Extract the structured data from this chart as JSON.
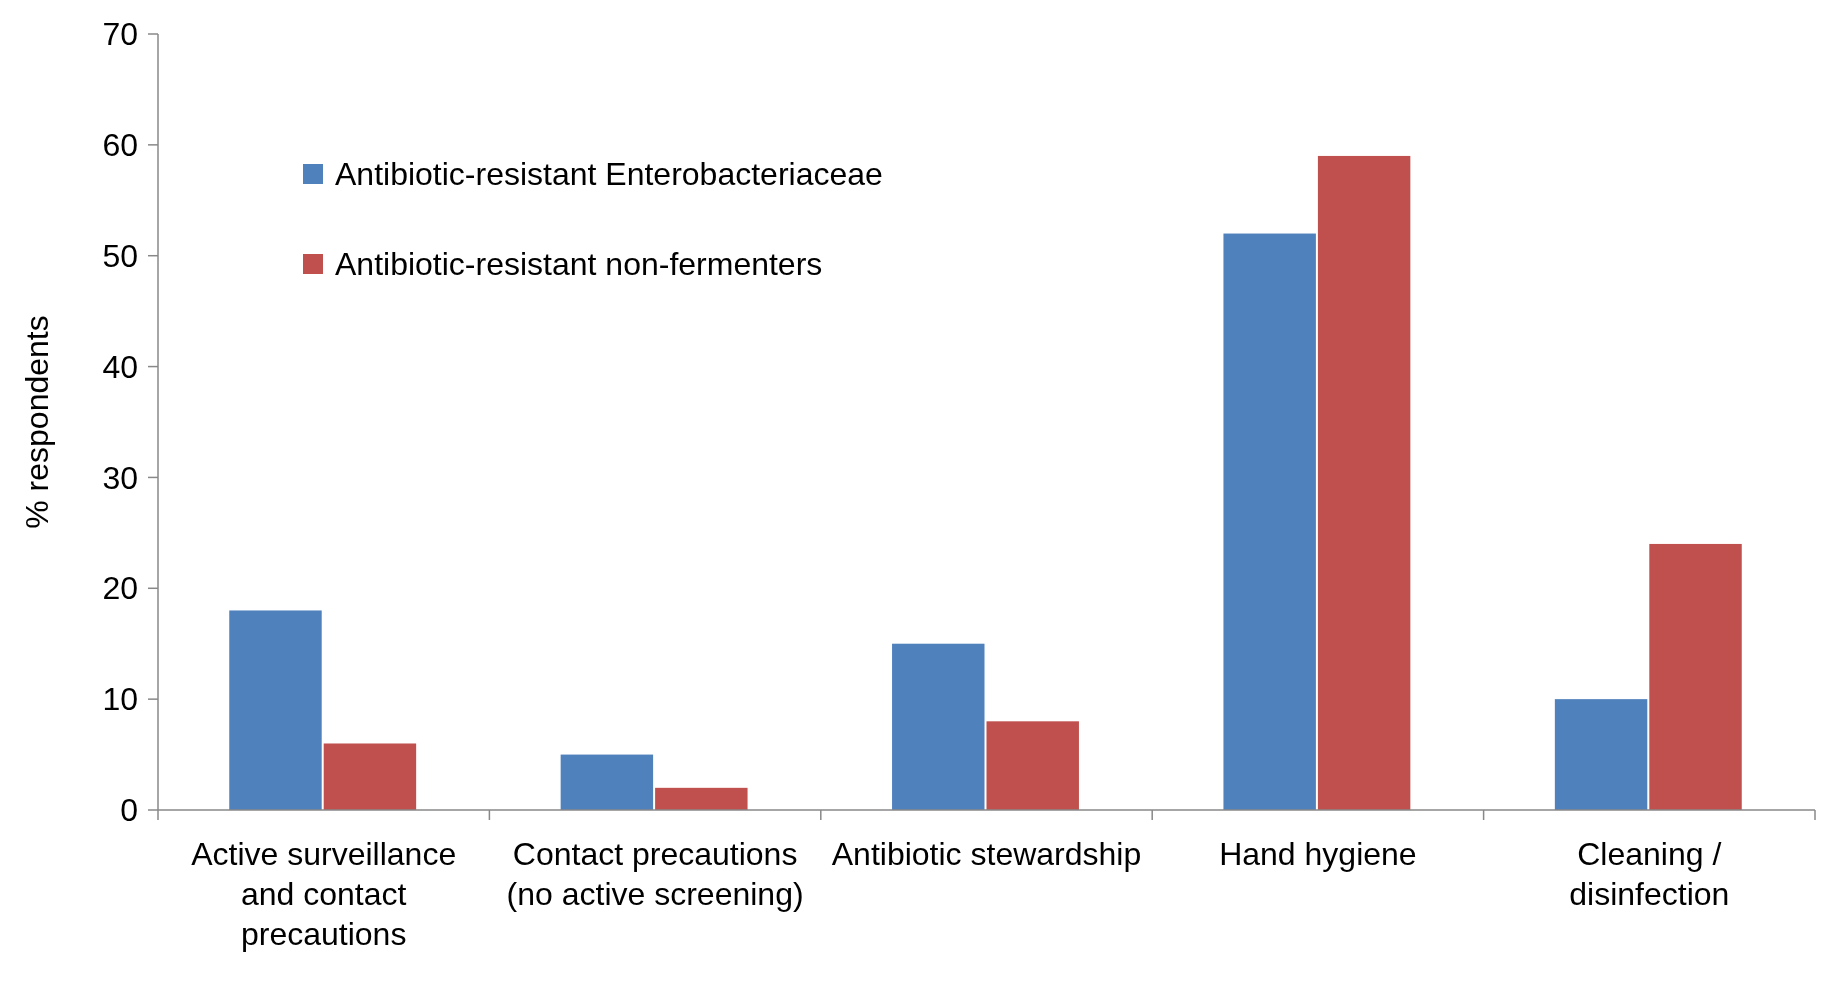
{
  "chart_data": {
    "type": "bar",
    "ylabel": "% respondents",
    "categories": [
      "Active surveillance and contact precautions",
      "Contact precautions (no active screening)",
      "Antibiotic stewardship",
      "Hand hygiene",
      "Cleaning / disinfection"
    ],
    "series": [
      {
        "name": "Antibiotic-resistant Enterobacteriaceae",
        "color": "#4f81bd",
        "values": [
          18,
          5,
          15,
          52,
          10
        ]
      },
      {
        "name": "Antibiotic-resistant non-fermenters",
        "color": "#c0504d",
        "values": [
          6,
          2,
          8,
          59,
          24
        ]
      }
    ],
    "ylim": [
      0,
      70
    ],
    "yticks": [
      0,
      10,
      20,
      30,
      40,
      50,
      60,
      70
    ],
    "grid": false,
    "legend": "top left"
  }
}
